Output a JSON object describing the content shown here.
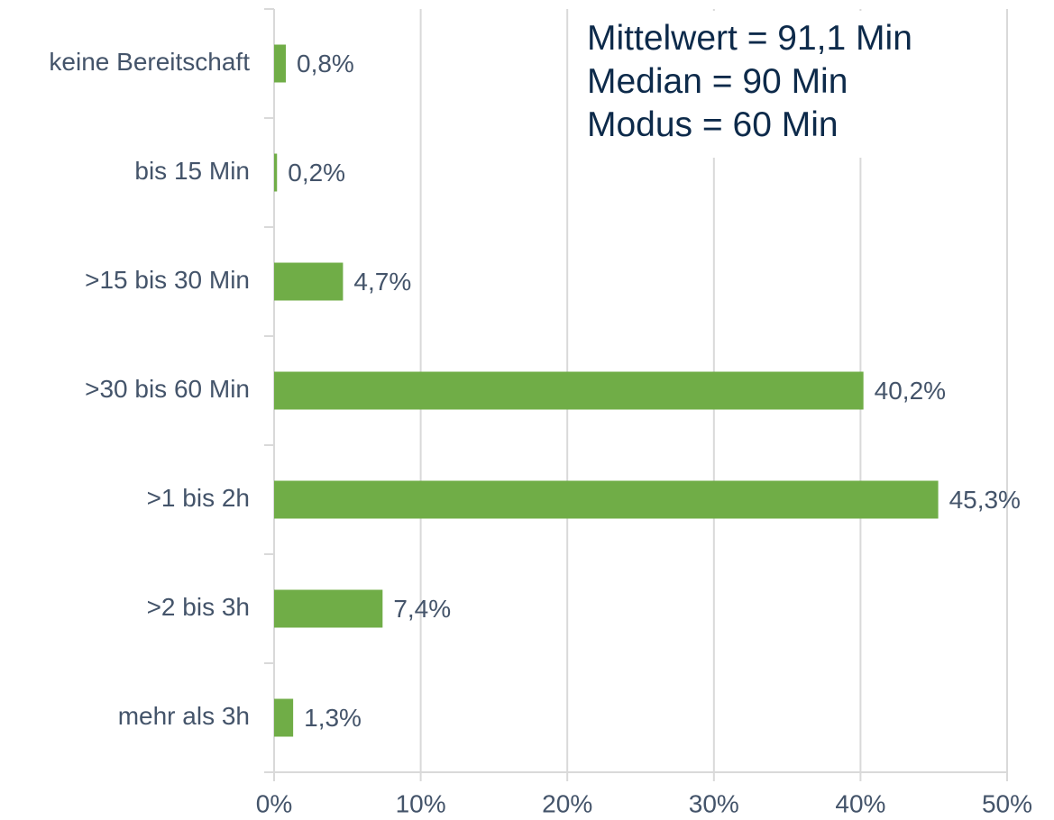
{
  "chart_data": {
    "type": "barh",
    "categories": [
      "keine Bereitschaft",
      "bis 15 Min",
      ">15 bis 30 Min",
      ">30 bis 60 Min",
      ">1 bis 2h",
      ">2 bis 3h",
      "mehr als 3h"
    ],
    "values": [
      0.8,
      0.2,
      4.7,
      40.2,
      45.3,
      7.4,
      1.3
    ],
    "value_labels": [
      "0,8%",
      "0,2%",
      "4,7%",
      "40,2%",
      "45,3%",
      "7,4%",
      "1,3%"
    ],
    "color": "#70ad47",
    "xlim": [
      0,
      50
    ],
    "xticks": [
      {
        "value": 0,
        "label": "0%"
      },
      {
        "value": 10,
        "label": "10%"
      },
      {
        "value": 20,
        "label": "20%"
      },
      {
        "value": 30,
        "label": "30%"
      },
      {
        "value": 40,
        "label": "40%"
      },
      {
        "value": 50,
        "label": "50%"
      }
    ],
    "grid": true,
    "annotations": [
      "Mittelwert = 91,1 Min",
      "Median = 90 Min",
      "Modus = 60 Min"
    ]
  }
}
